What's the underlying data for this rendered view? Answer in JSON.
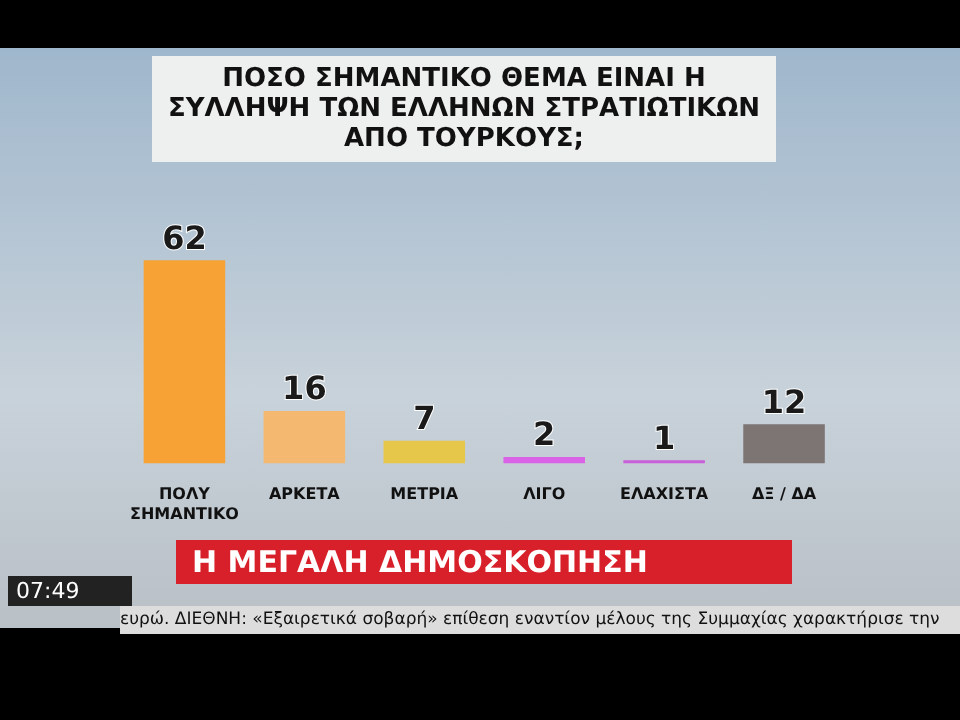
{
  "chart_data": {
    "type": "bar",
    "title": "ΠΟΣΟ ΣΗΜΑΝΤΙΚΟ ΘΕΜΑ ΕΙΝΑΙ Η ΣΥΛΛΗΨΗ ΤΩΝ ΕΛΛΗΝΩΝ ΣΤΡΑΤΙΩΤΙΚΩΝ ΑΠΟ ΤΟΥΡΚΟΥΣ;",
    "categories": [
      "ΠΟΛΥ ΣΗΜΑΝΤΙΚΟ",
      "ΑΡΚΕΤΑ",
      "ΜΕΤΡΙΑ",
      "ΛΙΓΟ",
      "ΕΛΑΧΙΣΤΑ",
      "ΔΞ / ΔΑ"
    ],
    "values": [
      62,
      16,
      7,
      2,
      1,
      12
    ],
    "colors": [
      "#f7a234",
      "#f4b870",
      "#e6c74a",
      "#d962e6",
      "#c95fd9",
      "#7d7474"
    ],
    "data_labels": true,
    "tick_labels": "x",
    "grid": false,
    "legend": false,
    "annotations": [
      "Η ΜΕΓΑΛΗ ΔΗΜΟΣΚΟΠΗΣΗ",
      "07:49",
      "ευρώ. ΔΙΕΘΝΗ: «Εξαιρετικά σοβαρή» επίθεση εναντίον μέλους της Συμμαχίας χαρακτήρισε την"
    ]
  }
}
